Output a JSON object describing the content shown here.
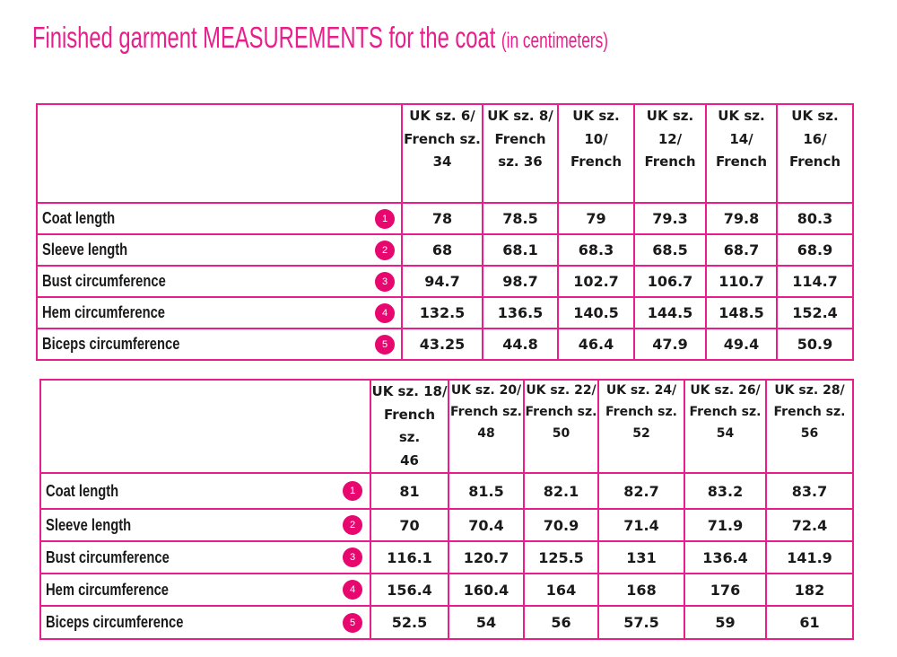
{
  "title": {
    "main": "Finished garment MEASUREMENTS for the coat",
    "sub": "(in centimeters)"
  },
  "badge_color": "#e8066f",
  "border_color": "#e81e8c",
  "table1": {
    "headers": [
      [
        "UK sz. 6/",
        "French sz.",
        "34"
      ],
      [
        "UK sz. 8/",
        "French",
        "sz. 36"
      ],
      [
        "UK sz.",
        "10/",
        "French"
      ],
      [
        "UK sz.",
        "12/",
        "French"
      ],
      [
        "UK sz.",
        "14/",
        "French"
      ],
      [
        "UK sz.",
        "16/",
        "French"
      ]
    ],
    "rows": [
      {
        "label": "Coat length",
        "num": "1",
        "values": [
          "78",
          "78.5",
          "79",
          "79.3",
          "79.8",
          "80.3"
        ]
      },
      {
        "label": "Sleeve length",
        "num": "2",
        "values": [
          "68",
          "68.1",
          "68.3",
          "68.5",
          "68.7",
          "68.9"
        ]
      },
      {
        "label": "Bust circumference",
        "num": "3",
        "values": [
          "94.7",
          "98.7",
          "102.7",
          "106.7",
          "110.7",
          "114.7"
        ]
      },
      {
        "label": "Hem circumference",
        "num": "4",
        "values": [
          "132.5",
          "136.5",
          "140.5",
          "144.5",
          "148.5",
          "152.4"
        ]
      },
      {
        "label": "Biceps circumference",
        "num": "5",
        "values": [
          "43.25",
          "44.8",
          "46.4",
          "47.9",
          "49.4",
          "50.9"
        ]
      }
    ]
  },
  "table2": {
    "headers": [
      [
        "UK sz. 18/",
        "French sz.",
        "46"
      ],
      [
        "UK sz. 20/",
        "French sz.",
        "48"
      ],
      [
        "UK sz. 22/",
        "French sz.",
        "50"
      ],
      [
        "UK sz. 24/",
        "French sz.",
        "52"
      ],
      [
        "UK sz. 26/",
        "French sz.",
        "54"
      ],
      [
        "UK sz. 28/",
        "French sz.",
        "56"
      ]
    ],
    "rows": [
      {
        "label": "Coat length",
        "num": "1",
        "values": [
          "81",
          "81.5",
          "82.1",
          "82.7",
          "83.2",
          "83.7"
        ]
      },
      {
        "label": "Sleeve length",
        "num": "2",
        "values": [
          "70",
          "70.4",
          "70.9",
          "71.4",
          "71.9",
          "72.4"
        ]
      },
      {
        "label": "Bust circumference",
        "num": "3",
        "values": [
          "116.1",
          "120.7",
          "125.5",
          "131",
          "136.4",
          "141.9"
        ]
      },
      {
        "label": "Hem circumference",
        "num": "4",
        "values": [
          "156.4",
          "160.4",
          "164",
          "168",
          "176",
          "182"
        ]
      },
      {
        "label": "Biceps circumference",
        "num": "5",
        "values": [
          "52.5",
          "54",
          "56",
          "57.5",
          "59",
          "61"
        ]
      }
    ]
  }
}
